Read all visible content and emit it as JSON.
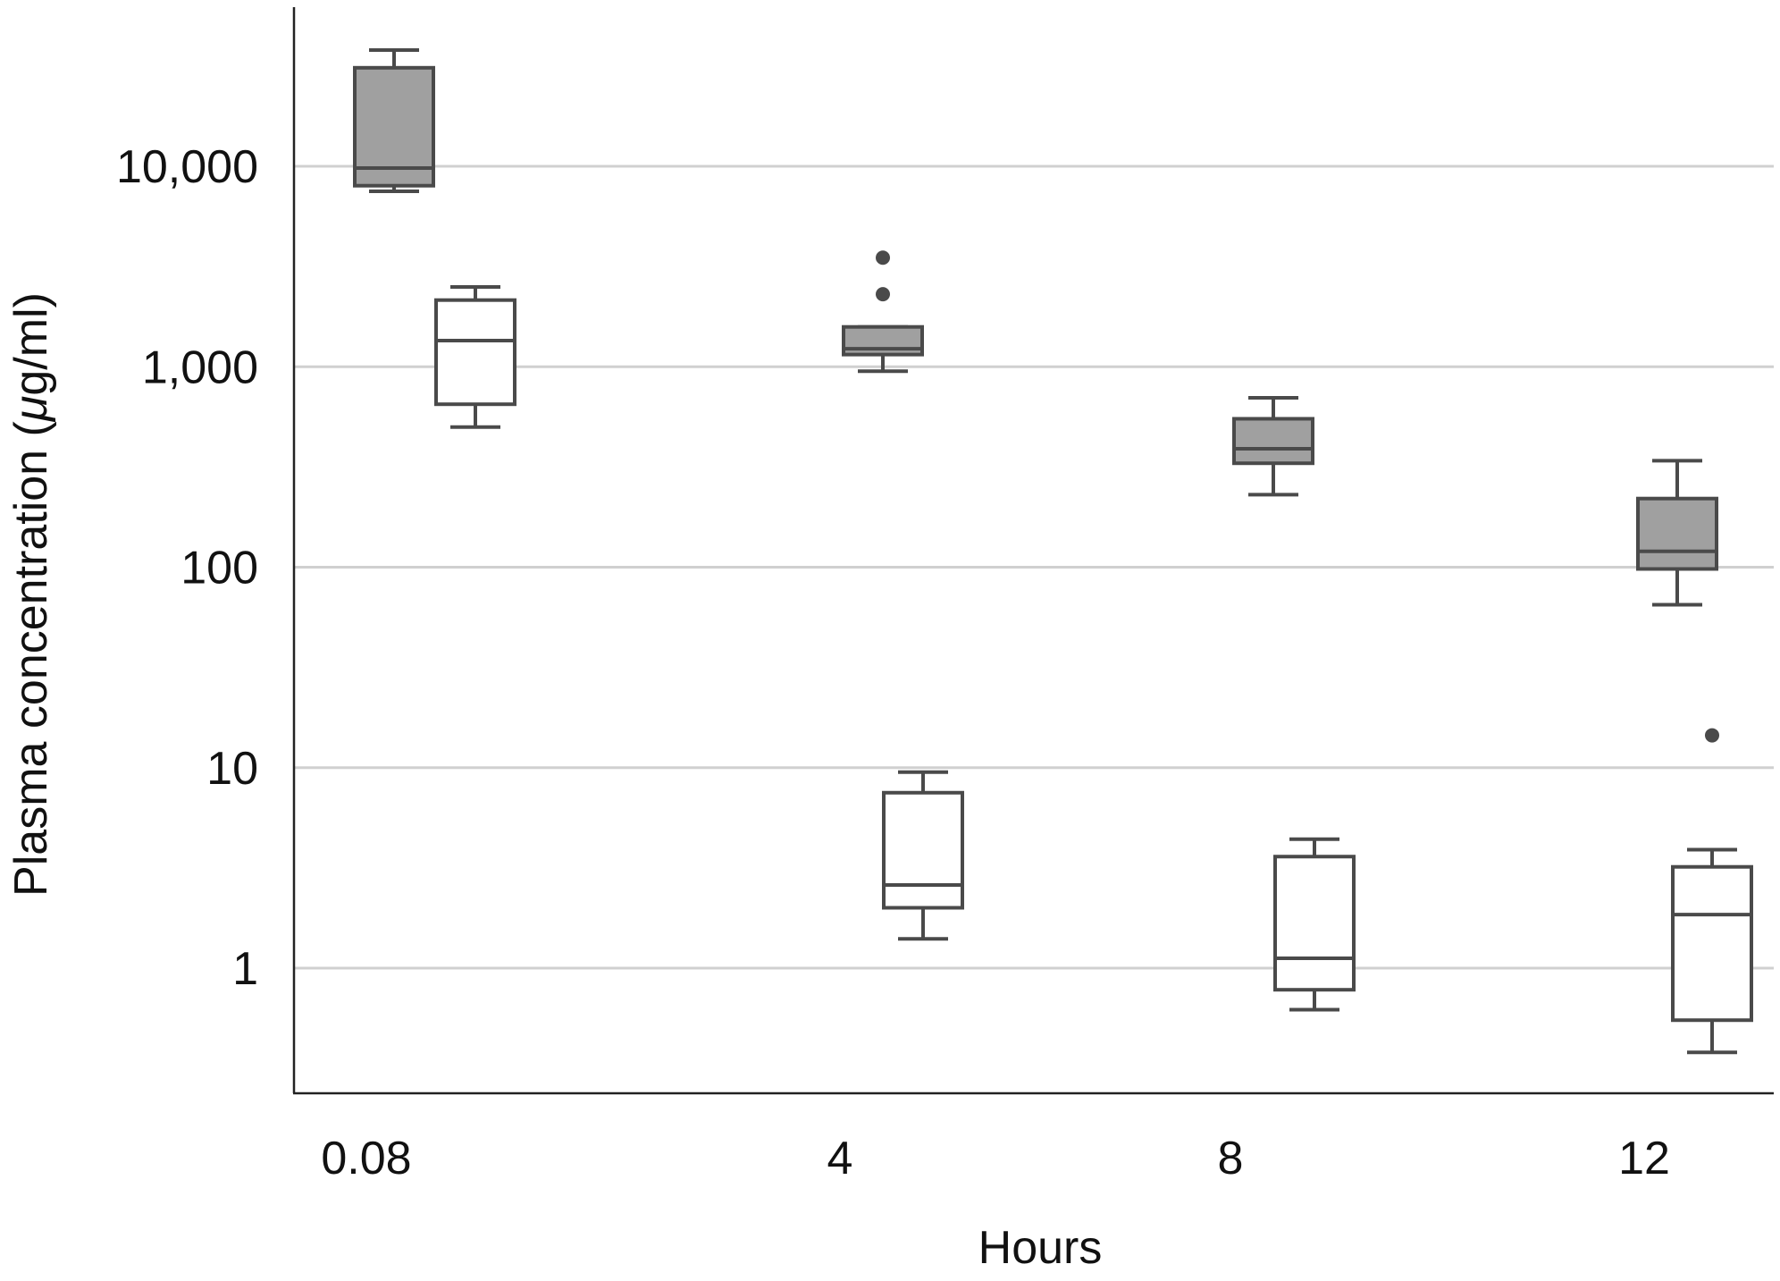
{
  "chart_data": {
    "type": "box",
    "xlabel": "Hours",
    "ylabel": "Plasma concentration (μg/ml)",
    "ylabel_parts": {
      "main": "Plasma concentration (",
      "mu": "μ",
      "rest": "g/ml)"
    },
    "y_scale": "log",
    "ylim": [
      0.18,
      100000
    ],
    "y_ticks": [
      1,
      10,
      100,
      1000,
      10000
    ],
    "y_tick_labels": [
      "1",
      "10",
      "100",
      "1,000",
      "10,000"
    ],
    "categories": [
      "0.08",
      "4",
      "8",
      "12"
    ],
    "grid": "horizontal",
    "legend": "none",
    "colors": {
      "filled": "#a0a0a0",
      "open": "#ffffff",
      "stroke": "#4a4a4a",
      "grid": "#d0d0d0",
      "axis": "#222222"
    },
    "series": [
      {
        "fill": "gray",
        "boxes": [
          {
            "category": "0.08",
            "whisker_low": 7500,
            "q1": 8000,
            "median": 9800,
            "q3": 31000,
            "whisker_high": 38000,
            "outliers": []
          },
          {
            "category": "4",
            "whisker_low": 950,
            "q1": 1150,
            "median": 1230,
            "q3": 1580,
            "whisker_high": 1580,
            "outliers": [
              2300,
              3500
            ]
          },
          {
            "category": "8",
            "whisker_low": 230,
            "q1": 330,
            "median": 390,
            "q3": 550,
            "whisker_high": 700,
            "outliers": []
          },
          {
            "category": "12",
            "whisker_low": 65,
            "q1": 98,
            "median": 120,
            "q3": 220,
            "whisker_high": 340,
            "outliers": []
          }
        ]
      },
      {
        "fill": "white",
        "boxes": [
          {
            "category": "0.08",
            "whisker_low": 500,
            "q1": 650,
            "median": 1350,
            "q3": 2150,
            "whisker_high": 2500,
            "outliers": []
          },
          {
            "category": "4",
            "whisker_low": 1.4,
            "q1": 2.0,
            "median": 2.6,
            "q3": 7.5,
            "whisker_high": 9.5,
            "outliers": []
          },
          {
            "category": "8",
            "whisker_low": 0.62,
            "q1": 0.78,
            "median": 1.12,
            "q3": 3.6,
            "whisker_high": 4.4,
            "outliers": []
          },
          {
            "category": "12",
            "whisker_low": 0.38,
            "q1": 0.55,
            "median": 1.85,
            "q3": 3.2,
            "whisker_high": 3.9,
            "outliers": [
              14.5
            ]
          }
        ]
      }
    ]
  }
}
